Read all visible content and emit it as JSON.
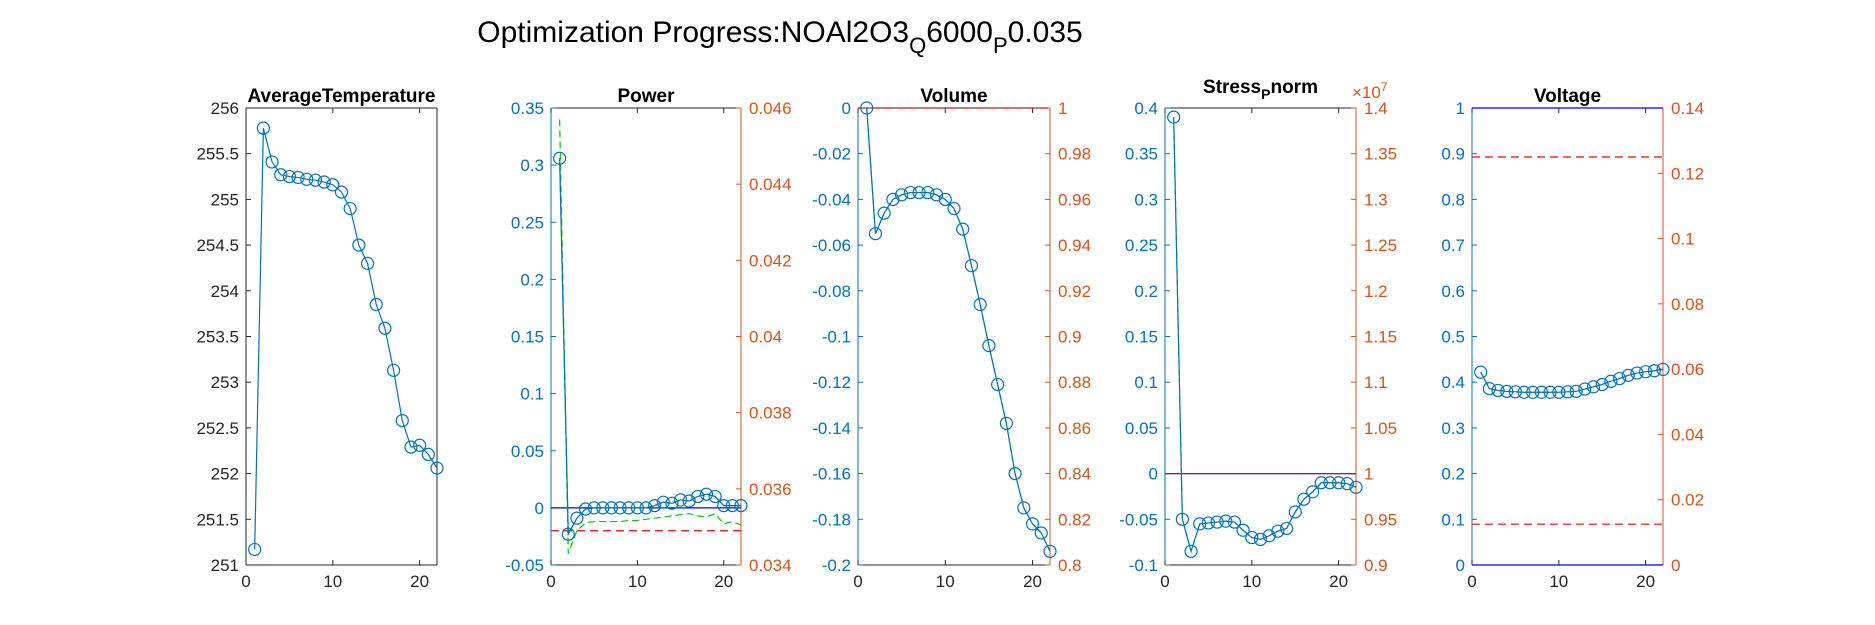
{
  "figure": {
    "title": "Optimization Progress:NOAl2O3",
    "title_sub1": "Q",
    "title_mid": "6000",
    "title_sub2": "P",
    "title_tail": "0.035"
  },
  "colors": {
    "left_axis": "#0072BD",
    "right_axis": "#D95319",
    "series_marker": "#0072BD",
    "series_green": "#00CC00",
    "line_blue": "#0000FF",
    "line_red_dashed": "#FF0000"
  },
  "chart_data": [
    {
      "type": "line",
      "title": "AverageTemperature",
      "xlim": [
        0,
        22
      ],
      "ylim": [
        251,
        256
      ],
      "xticks": [
        "0",
        "10",
        "20"
      ],
      "yticks": [
        "251",
        "251.5",
        "252",
        "252.5",
        "253",
        "253.5",
        "254",
        "254.5",
        "255",
        "255.5",
        "256"
      ],
      "series": [
        {
          "x": [
            1,
            2,
            3,
            4,
            5,
            6,
            7,
            8,
            9,
            10,
            11,
            12,
            13,
            14,
            15,
            16,
            17,
            18,
            19,
            20,
            21,
            22
          ],
          "y": [
            251.17,
            255.78,
            255.41,
            255.27,
            255.25,
            255.24,
            255.22,
            255.21,
            255.19,
            255.16,
            255.08,
            254.9,
            254.5,
            254.3,
            253.85,
            253.59,
            253.13,
            252.58,
            252.29,
            252.31,
            252.21,
            252.06
          ]
        }
      ]
    },
    {
      "type": "line",
      "title": "Power",
      "xlim": [
        0,
        22
      ],
      "ylim": [
        -0.05,
        0.35
      ],
      "ylim_right": [
        0.034,
        0.046
      ],
      "xticks": [
        "0",
        "10",
        "20"
      ],
      "yticks": [
        "-0.05",
        "0",
        "0.05",
        "0.1",
        "0.15",
        "0.2",
        "0.25",
        "0.3",
        "0.35"
      ],
      "yticks_right": [
        "0.034",
        "0.036",
        "0.038",
        "0.04",
        "0.042",
        "0.044",
        "0.046"
      ],
      "series": [
        {
          "x": [
            1,
            2,
            3,
            4,
            5,
            6,
            7,
            8,
            9,
            10,
            11,
            12,
            13,
            14,
            15,
            16,
            17,
            18,
            19,
            20,
            21,
            22
          ],
          "y": [
            0.306,
            -0.023,
            -0.009,
            -0.001,
            0,
            0,
            0,
            0,
            0,
            0,
            0,
            0.002,
            0.005,
            0.004,
            0.007,
            0.006,
            0.01,
            0.012,
            0.01,
            0.002,
            0.002,
            0.002
          ]
        }
      ],
      "green_dashed": {
        "x": [
          1,
          2,
          3,
          4,
          5,
          6,
          7,
          8,
          9,
          10,
          11,
          12,
          13,
          14,
          15,
          16,
          17,
          18,
          19,
          20,
          21,
          22
        ],
        "y": [
          0.34,
          -0.04,
          -0.02,
          -0.013,
          -0.012,
          -0.012,
          -0.012,
          -0.012,
          -0.011,
          -0.011,
          -0.01,
          -0.009,
          -0.008,
          -0.007,
          -0.006,
          -0.005,
          -0.007,
          -0.008,
          -0.005,
          -0.014,
          -0.012,
          -0.015
        ]
      },
      "hline_blue": 0.0,
      "hline_red_dashed_right": 0.0349
    },
    {
      "type": "line",
      "title": "Volume",
      "xlim": [
        0,
        22
      ],
      "ylim": [
        -0.2,
        0
      ],
      "ylim_right": [
        0.8,
        1
      ],
      "xticks": [
        "0",
        "10",
        "20"
      ],
      "yticks": [
        "-0.2",
        "-0.18",
        "-0.16",
        "-0.14",
        "-0.12",
        "-0.1",
        "-0.08",
        "-0.06",
        "-0.04",
        "-0.02",
        "0"
      ],
      "yticks_right": [
        "0.8",
        "0.82",
        "0.84",
        "0.86",
        "0.88",
        "0.9",
        "0.92",
        "0.94",
        "0.96",
        "0.98",
        "1"
      ],
      "series": [
        {
          "x": [
            1,
            2,
            3,
            4,
            5,
            6,
            7,
            8,
            9,
            10,
            11,
            12,
            13,
            14,
            15,
            16,
            17,
            18,
            19,
            20,
            21,
            22
          ],
          "y": [
            0,
            -0.055,
            -0.046,
            -0.04,
            -0.038,
            -0.037,
            -0.037,
            -0.037,
            -0.038,
            -0.04,
            -0.044,
            -0.053,
            -0.069,
            -0.086,
            -0.104,
            -0.121,
            -0.138,
            -0.16,
            -0.175,
            -0.182,
            -0.186,
            -0.194
          ]
        }
      ],
      "hline_red_dashed_right": 1.0
    },
    {
      "type": "line",
      "title": "Stress",
      "title_sub": "P",
      "title_tail": "norm",
      "exponent_label": "×10",
      "exponent_power": "7",
      "xlim": [
        0,
        22
      ],
      "ylim": [
        -0.1,
        0.4
      ],
      "ylim_right": [
        0.9,
        1.4
      ],
      "xticks": [
        "0",
        "10",
        "20"
      ],
      "yticks": [
        "-0.1",
        "-0.05",
        "0",
        "0.05",
        "0.1",
        "0.15",
        "0.2",
        "0.25",
        "0.3",
        "0.35",
        "0.4"
      ],
      "yticks_right": [
        "0.9",
        "0.95",
        "1",
        "1.05",
        "1.1",
        "1.15",
        "1.2",
        "1.25",
        "1.3",
        "1.35",
        "1.4"
      ],
      "series": [
        {
          "x": [
            1,
            2,
            3,
            4,
            5,
            6,
            7,
            8,
            9,
            10,
            11,
            12,
            13,
            14,
            15,
            16,
            17,
            18,
            19,
            20,
            21,
            22
          ],
          "y": [
            0.39,
            -0.05,
            -0.085,
            -0.055,
            -0.054,
            -0.053,
            -0.052,
            -0.053,
            -0.062,
            -0.07,
            -0.072,
            -0.068,
            -0.063,
            -0.06,
            -0.042,
            -0.028,
            -0.02,
            -0.01,
            -0.01,
            -0.01,
            -0.011,
            -0.015
          ]
        }
      ],
      "hline_blue": 0.0,
      "hline_red_right": 1.0
    },
    {
      "type": "line",
      "title": "Voltage",
      "xlim": [
        0,
        22
      ],
      "ylim": [
        0,
        1
      ],
      "ylim_right": [
        0,
        0.14
      ],
      "xticks": [
        "0",
        "10",
        "20"
      ],
      "yticks": [
        "0",
        "0.1",
        "0.2",
        "0.3",
        "0.4",
        "0.5",
        "0.6",
        "0.7",
        "0.8",
        "0.9",
        "1"
      ],
      "yticks_right": [
        "0",
        "0.02",
        "0.04",
        "0.06",
        "0.08",
        "0.1",
        "0.12",
        "0.14"
      ],
      "series": [
        {
          "x": [
            1,
            2,
            3,
            4,
            5,
            6,
            7,
            8,
            9,
            10,
            11,
            12,
            13,
            14,
            15,
            16,
            17,
            18,
            19,
            20,
            21,
            22
          ],
          "y": [
            0.422,
            0.386,
            0.382,
            0.38,
            0.379,
            0.378,
            0.378,
            0.378,
            0.378,
            0.378,
            0.379,
            0.38,
            0.385,
            0.39,
            0.395,
            0.402,
            0.408,
            0.415,
            0.42,
            0.423,
            0.425,
            0.428
          ]
        }
      ],
      "hline_blue_top": 1.0,
      "hline_blue_bottom": 0.0,
      "hline_red_dashed_right": [
        0.125,
        0.0125
      ]
    }
  ]
}
